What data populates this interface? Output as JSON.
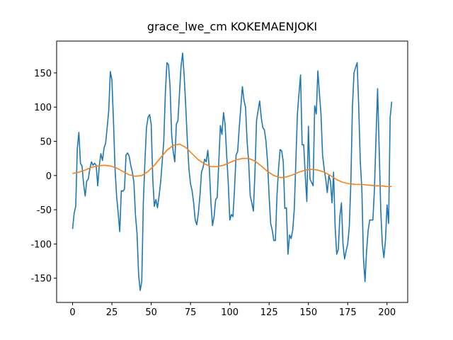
{
  "chart_data": {
    "type": "line",
    "title": "grace_lwe_cm KOKEMAENJOKI",
    "xlim": [
      -10.15,
      213.15
    ],
    "xticks": [
      0,
      25,
      50,
      75,
      100,
      125,
      150,
      175,
      200
    ],
    "ylim": [
      -185.5,
      196.5
    ],
    "yticks": [
      -150,
      -100,
      -50,
      0,
      50,
      100,
      150
    ],
    "grid": false,
    "series": [
      {
        "color": "#1f77b4",
        "x": [
          0,
          1,
          2,
          3,
          4,
          5,
          6,
          7,
          8,
          9,
          10,
          11,
          12,
          13,
          14,
          15,
          16,
          17,
          18,
          19,
          20,
          21,
          22,
          23,
          24,
          25,
          26,
          27,
          28,
          29,
          30,
          31,
          32,
          33,
          34,
          35,
          36,
          37,
          38,
          39,
          40,
          41,
          42,
          43,
          44,
          45,
          46,
          47,
          48,
          49,
          50,
          51,
          52,
          53,
          54,
          55,
          56,
          57,
          58,
          59,
          60,
          61,
          62,
          63,
          64,
          65,
          66,
          67,
          68,
          69,
          70,
          71,
          72,
          73,
          74,
          75,
          76,
          77,
          78,
          79,
          80,
          81,
          82,
          83,
          84,
          85,
          86,
          87,
          88,
          89,
          90,
          91,
          92,
          93,
          94,
          95,
          96,
          97,
          98,
          99,
          100,
          101,
          102,
          103,
          104,
          105,
          106,
          107,
          108,
          109,
          110,
          111,
          112,
          113,
          114,
          115,
          116,
          117,
          118,
          119,
          120,
          121,
          122,
          123,
          124,
          125,
          126,
          127,
          128,
          129,
          130,
          131,
          132,
          133,
          134,
          135,
          136,
          137,
          138,
          139,
          140,
          141,
          142,
          143,
          144,
          145,
          146,
          147,
          148,
          149,
          150,
          151,
          152,
          153,
          154,
          155,
          156,
          157,
          158,
          159,
          160,
          161,
          162,
          163,
          164,
          165,
          166,
          167,
          168,
          169,
          170,
          171,
          172,
          173,
          174,
          175,
          176,
          177,
          178,
          179,
          180,
          181,
          182,
          183,
          184,
          185,
          186,
          187,
          188,
          189,
          190,
          191,
          192,
          193,
          194,
          195,
          196,
          197,
          198,
          199,
          200,
          201,
          202,
          203
        ],
        "values": [
          -78,
          -55,
          -45,
          40,
          63,
          18,
          14,
          -12,
          -30,
          -8,
          -5,
          10,
          20,
          15,
          18,
          15,
          -15,
          15,
          32,
          22,
          40,
          47,
          70,
          95,
          152,
          140,
          80,
          10,
          -30,
          -55,
          -82,
          -22,
          -23,
          -20,
          30,
          33,
          28,
          15,
          5,
          -10,
          -58,
          -85,
          -145,
          -168,
          -155,
          -40,
          20,
          70,
          85,
          89,
          75,
          -5,
          -45,
          -35,
          -47,
          -30,
          -10,
          20,
          50,
          120,
          165,
          162,
          130,
          60,
          35,
          20,
          75,
          80,
          120,
          160,
          179,
          145,
          100,
          50,
          10,
          -12,
          -22,
          -40,
          -65,
          -72,
          -55,
          -30,
          5,
          12,
          24,
          20,
          37,
          10,
          -40,
          -73,
          -60,
          -35,
          -32,
          20,
          73,
          60,
          92,
          75,
          30,
          -10,
          -65,
          -57,
          -60,
          -20,
          30,
          35,
          70,
          100,
          130,
          110,
          100,
          50,
          20,
          -30,
          -40,
          -52,
          5,
          80,
          95,
          109,
          85,
          70,
          67,
          50,
          20,
          -30,
          -70,
          -80,
          -95,
          -95,
          -30,
          10,
          38,
          36,
          20,
          -48,
          -47,
          -115,
          -87,
          -92,
          -80,
          -50,
          20,
          90,
          120,
          147,
          45,
          45,
          0,
          -38,
          72,
          -5,
          -10,
          -15,
          102,
          90,
          153,
          120,
          90,
          30,
          10,
          -5,
          -25,
          0,
          -8,
          -40,
          5,
          -75,
          -115,
          -108,
          -60,
          -40,
          -100,
          -122,
          -110,
          -100,
          -75,
          -10,
          100,
          150,
          158,
          165,
          100,
          20,
          -20,
          -120,
          -155,
          -110,
          -80,
          -65,
          -65,
          -65,
          -20,
          55,
          127,
          40,
          -50,
          -100,
          -120,
          -95,
          -43,
          -70,
          85,
          108
        ]
      },
      {
        "color": "#ff7f0e",
        "x": [
          0,
          4,
          8,
          12,
          16,
          20,
          24,
          28,
          32,
          36,
          40,
          44,
          48,
          52,
          56,
          60,
          64,
          68,
          72,
          76,
          80,
          84,
          88,
          92,
          96,
          100,
          104,
          108,
          112,
          116,
          120,
          124,
          128,
          132,
          136,
          140,
          144,
          148,
          152,
          156,
          160,
          164,
          168,
          172,
          176,
          180,
          184,
          188,
          192,
          196,
          200,
          203
        ],
        "values": [
          3,
          5,
          8,
          12,
          14,
          15,
          14,
          11,
          6,
          1,
          -1,
          0,
          6,
          15,
          26,
          37,
          44,
          46,
          41,
          32,
          23,
          17,
          13,
          13,
          15,
          19,
          23,
          25,
          25,
          21,
          14,
          6,
          0,
          -3,
          -2,
          1,
          5,
          8,
          9,
          8,
          5,
          0,
          -6,
          -10,
          -12,
          -13,
          -13,
          -14,
          -15,
          -15,
          -16,
          -16
        ]
      }
    ]
  }
}
